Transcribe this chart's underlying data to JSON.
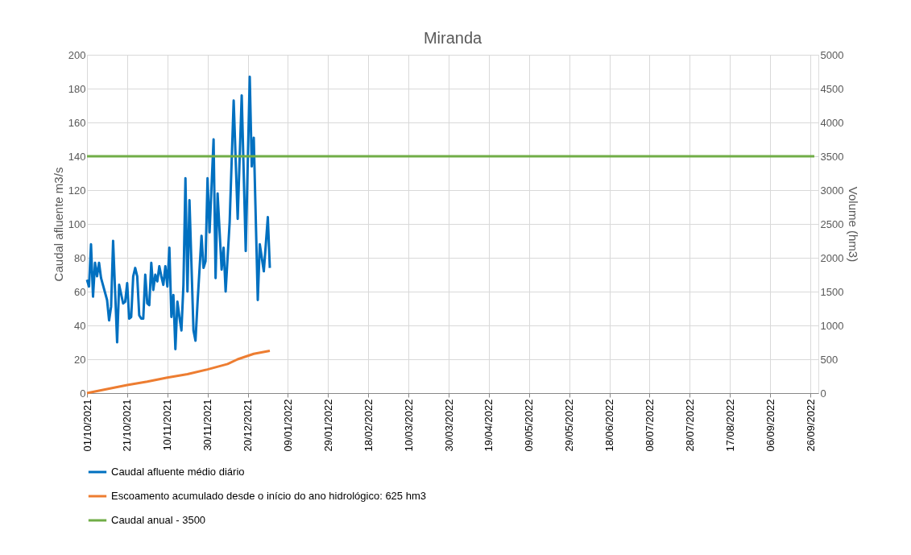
{
  "chart_data": {
    "type": "line",
    "title": "Miranda",
    "ylabel": "Caudal afluente m3/s",
    "y2label": "Volume (hm3)",
    "xlim": [
      "2021-10-01",
      "2022-09-30"
    ],
    "xticks": [
      {
        "value": "2021-10-01",
        "label": "01/10/2021"
      },
      {
        "value": "2021-10-21",
        "label": "21/10/2021"
      },
      {
        "value": "2021-11-10",
        "label": "10/11/2021"
      },
      {
        "value": "2021-11-30",
        "label": "30/11/2021"
      },
      {
        "value": "2021-12-20",
        "label": "20/12/2021"
      },
      {
        "value": "2022-01-09",
        "label": "09/01/2022"
      },
      {
        "value": "2022-01-29",
        "label": "29/01/2022"
      },
      {
        "value": "2022-02-18",
        "label": "18/02/2022"
      },
      {
        "value": "2022-03-10",
        "label": "10/03/2022"
      },
      {
        "value": "2022-03-30",
        "label": "30/03/2022"
      },
      {
        "value": "2022-04-19",
        "label": "19/04/2022"
      },
      {
        "value": "2022-05-09",
        "label": "09/05/2022"
      },
      {
        "value": "2022-05-29",
        "label": "29/05/2022"
      },
      {
        "value": "2022-06-18",
        "label": "18/06/2022"
      },
      {
        "value": "2022-07-08",
        "label": "08/07/2022"
      },
      {
        "value": "2022-07-28",
        "label": "28/07/2022"
      },
      {
        "value": "2022-08-17",
        "label": "17/08/2022"
      },
      {
        "value": "2022-09-06",
        "label": "06/09/2022"
      },
      {
        "value": "2022-09-26",
        "label": "26/09/2022"
      }
    ],
    "ylim": [
      0,
      200
    ],
    "yticks": [
      0,
      20,
      40,
      60,
      80,
      100,
      120,
      140,
      160,
      180,
      200
    ],
    "y2lim": [
      0,
      5000
    ],
    "y2ticks": [
      0,
      500,
      1000,
      1500,
      2000,
      2500,
      3000,
      3500,
      4000,
      4500,
      5000
    ],
    "grid": true,
    "legend": "bottom",
    "line_style": "solid",
    "series": [
      {
        "name": "Caudal afluente médio diário",
        "color": "#0070c0",
        "x": [
          "2021-10-01",
          "2021-10-02",
          "2021-10-03",
          "2021-10-04",
          "2021-10-05",
          "2021-10-06",
          "2021-10-07",
          "2021-10-08",
          "2021-10-11",
          "2021-10-12",
          "2021-10-13",
          "2021-10-14",
          "2021-10-16",
          "2021-10-17",
          "2021-10-19",
          "2021-10-20",
          "2021-10-21",
          "2021-10-22",
          "2021-10-23",
          "2021-10-24",
          "2021-10-25",
          "2021-10-26",
          "2021-10-27",
          "2021-10-28",
          "2021-10-29",
          "2021-10-30",
          "2021-10-31",
          "2021-11-01",
          "2021-11-02",
          "2021-11-03",
          "2021-11-04",
          "2021-11-05",
          "2021-11-06",
          "2021-11-07",
          "2021-11-08",
          "2021-11-09",
          "2021-11-10",
          "2021-11-11",
          "2021-11-12",
          "2021-11-13",
          "2021-11-14",
          "2021-11-15",
          "2021-11-16",
          "2021-11-17",
          "2021-11-18",
          "2021-11-19",
          "2021-11-20",
          "2021-11-21",
          "2021-11-23",
          "2021-11-24",
          "2021-11-25",
          "2021-11-27",
          "2021-11-28",
          "2021-11-29",
          "2021-11-30",
          "2021-12-01",
          "2021-12-03",
          "2021-12-04",
          "2021-12-05",
          "2021-12-07",
          "2021-12-08",
          "2021-12-09",
          "2021-12-11",
          "2021-12-13",
          "2021-12-15",
          "2021-12-17",
          "2021-12-19",
          "2021-12-21",
          "2021-12-22",
          "2021-12-23",
          "2021-12-25",
          "2021-12-26",
          "2021-12-28",
          "2021-12-30",
          "2021-12-31"
        ],
        "values": [
          67,
          63,
          88,
          57,
          77,
          69,
          77,
          68,
          55,
          43,
          51,
          90,
          30,
          64,
          53,
          54,
          65,
          44,
          45,
          69,
          74,
          69,
          46,
          44,
          44,
          70,
          53,
          52,
          77,
          61,
          70,
          66,
          75,
          69,
          64,
          75,
          63,
          86,
          45,
          58,
          26,
          54,
          45,
          37,
          64,
          127,
          60,
          114,
          37,
          31,
          53,
          93,
          74,
          78,
          127,
          95,
          150,
          68,
          118,
          73,
          86,
          60,
          101,
          173,
          103,
          176,
          84,
          187,
          134,
          151,
          55,
          88,
          72,
          104,
          74
        ]
      },
      {
        "name": "Escoamento acumulado desde o início do ano hidrológico: 625 hm3",
        "color": "#ed7d31",
        "axis": "y2",
        "x": [
          "2021-10-01",
          "2021-10-11",
          "2021-10-21",
          "2021-10-31",
          "2021-11-10",
          "2021-11-20",
          "2021-11-30",
          "2021-12-10",
          "2021-12-15",
          "2021-12-23",
          "2021-12-31"
        ],
        "values": [
          0,
          60,
          120,
          170,
          230,
          280,
          350,
          430,
          500,
          580,
          625
        ]
      },
      {
        "name": "Caudal anual - 3500",
        "color": "#70ad47",
        "axis": "y2",
        "x": [
          "2021-10-01",
          "2022-09-28"
        ],
        "values": [
          3500,
          3500
        ]
      }
    ]
  }
}
